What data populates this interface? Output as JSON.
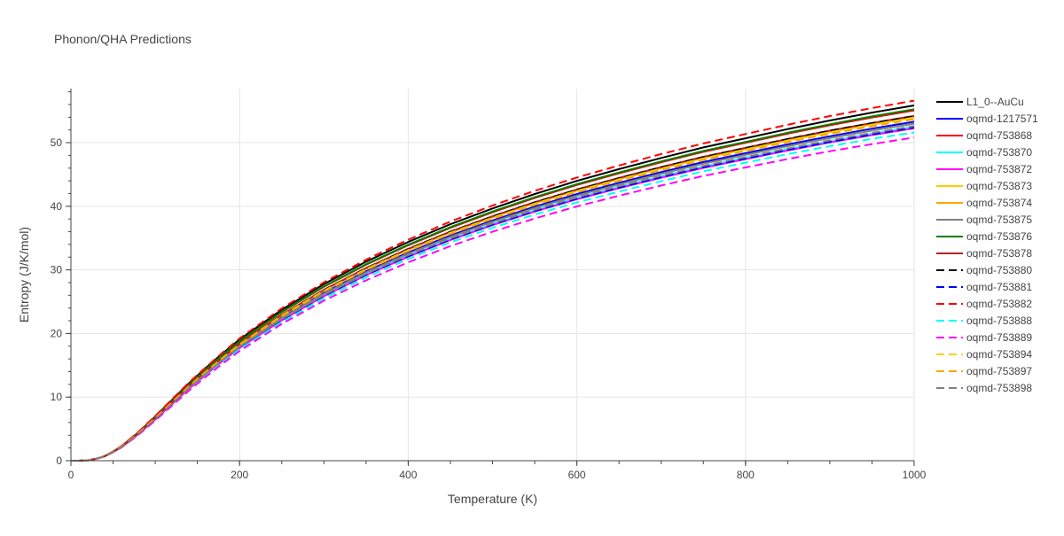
{
  "chart_data": {
    "type": "line",
    "title": "Phonon/QHA Predictions",
    "xlabel": "Temperature (K)",
    "ylabel": "Entropy (J/K/mol)",
    "xlim": [
      0,
      1000
    ],
    "ylim": [
      0,
      58.5
    ],
    "x_ticks": [
      0,
      200,
      400,
      600,
      800,
      1000
    ],
    "y_ticks": [
      0,
      10,
      20,
      30,
      40,
      50
    ],
    "grid": true,
    "legend_position": "right",
    "x": [
      0,
      10,
      20,
      30,
      40,
      50,
      60,
      80,
      100,
      120,
      140,
      160,
      180,
      200,
      250,
      300,
      350,
      400,
      450,
      500,
      550,
      600,
      650,
      700,
      750,
      800,
      850,
      900,
      950,
      1000
    ],
    "reference_curve": [
      0,
      0,
      0.05,
      0.3,
      0.7,
      1.4,
      2.2,
      4.3,
      6.7,
      9.2,
      11.7,
      14.0,
      16.2,
      18.3,
      22.8,
      26.7,
      30.1,
      33.1,
      35.8,
      38.2,
      40.4,
      42.4,
      44.2,
      45.9,
      47.5,
      48.9,
      50.3,
      51.6,
      52.8,
      53.9
    ],
    "series": [
      {
        "name": "L1_0--AuCu",
        "color": "#000000",
        "dash": "solid",
        "values": [
          0,
          0,
          0.05,
          0.31,
          0.71,
          1.43,
          2.27,
          4.46,
          6.95,
          9.56,
          12.18,
          14.58,
          16.88,
          19.06,
          23.73,
          27.77,
          31.29,
          34.39,
          37.18,
          39.65,
          41.92,
          43.98,
          45.84,
          47.6,
          49.25,
          50.69,
          52.14,
          53.48,
          54.72,
          55.85
        ]
      },
      {
        "name": "oqmd-1217571",
        "color": "#0000ff",
        "dash": "solid",
        "values": [
          0,
          0,
          0.05,
          0.3,
          0.69,
          1.39,
          2.18,
          4.26,
          6.63,
          9.09,
          11.57,
          13.84,
          16.02,
          18.09,
          22.55,
          26.4,
          29.77,
          32.74,
          35.4,
          37.77,
          39.95,
          41.92,
          43.7,
          45.38,
          46.96,
          48.35,
          49.73,
          51.01,
          52.2,
          53.29
        ]
      },
      {
        "name": "oqmd-753868",
        "color": "#ff0000",
        "dash": "solid",
        "values": [
          0,
          0,
          0.05,
          0.31,
          0.71,
          1.43,
          2.25,
          4.41,
          6.87,
          9.43,
          11.99,
          14.35,
          16.6,
          18.74,
          23.35,
          27.33,
          30.8,
          33.86,
          36.61,
          39.06,
          41.31,
          43.35,
          45.19,
          46.92,
          48.55,
          49.98,
          51.41,
          52.74,
          53.96,
          55.08
        ]
      },
      {
        "name": "oqmd-753870",
        "color": "#00ffff",
        "dash": "solid",
        "values": [
          0,
          0,
          0.05,
          0.3,
          0.68,
          1.37,
          2.15,
          4.19,
          6.52,
          8.94,
          11.38,
          13.62,
          15.76,
          17.81,
          22.2,
          25.99,
          29.31,
          32.24,
          34.87,
          37.22,
          39.37,
          41.31,
          43.06,
          44.71,
          46.27,
          47.64,
          49.0,
          50.26,
          51.43,
          52.51
        ]
      },
      {
        "name": "oqmd-753872",
        "color": "#ff00ff",
        "dash": "solid",
        "values": [
          0,
          0,
          0.05,
          0.29,
          0.68,
          1.36,
          2.13,
          4.17,
          6.48,
          8.89,
          11.31,
          13.54,
          15.68,
          17.71,
          22.08,
          25.86,
          29.16,
          32.07,
          34.69,
          37.03,
          39.17,
          41.1,
          42.84,
          44.49,
          46.04,
          47.41,
          48.77,
          50.03,
          51.19,
          52.26
        ]
      },
      {
        "name": "oqmd-753873",
        "color": "#ffcc00",
        "dash": "solid",
        "values": [
          0,
          0,
          0.05,
          0.3,
          0.7,
          1.41,
          2.21,
          4.32,
          6.72,
          9.21,
          11.72,
          14.03,
          16.23,
          18.32,
          22.84,
          26.73,
          30.14,
          33.14,
          35.84,
          38.24,
          40.44,
          42.44,
          44.24,
          45.94,
          47.54,
          48.95,
          50.35,
          51.65,
          52.85,
          53.96
        ]
      },
      {
        "name": "oqmd-753874",
        "color": "#ffa500",
        "dash": "solid",
        "values": [
          0,
          0,
          0.05,
          0.3,
          0.7,
          1.41,
          2.22,
          4.33,
          6.74,
          9.24,
          11.76,
          14.08,
          16.29,
          18.39,
          22.92,
          26.83,
          30.25,
          33.27,
          35.98,
          38.39,
          40.6,
          42.6,
          44.41,
          46.12,
          47.72,
          49.14,
          50.54,
          51.85,
          53.05,
          54.16
        ]
      },
      {
        "name": "oqmd-753875",
        "color": "#808080",
        "dash": "solid",
        "values": [
          0,
          0,
          0.05,
          0.3,
          0.69,
          1.38,
          2.17,
          4.24,
          6.59,
          9.04,
          11.5,
          13.76,
          15.93,
          17.99,
          22.42,
          26.24,
          29.59,
          32.55,
          35.19,
          37.56,
          39.72,
          41.68,
          43.45,
          45.12,
          46.69,
          48.07,
          49.44,
          50.72,
          51.9,
          52.99
        ]
      },
      {
        "name": "oqmd-753876",
        "color": "#008000",
        "dash": "solid",
        "values": [
          0,
          0,
          0.05,
          0.31,
          0.71,
          1.43,
          2.26,
          4.42,
          6.89,
          9.45,
          12.02,
          14.39,
          16.65,
          18.79,
          23.42,
          27.41,
          30.89,
          33.96,
          36.71,
          39.18,
          41.43,
          43.47,
          45.31,
          47.05,
          48.69,
          50.12,
          51.56,
          52.89,
          54.12,
          55.25
        ]
      },
      {
        "name": "oqmd-753878",
        "color": "#b22222",
        "dash": "solid",
        "values": [
          0,
          0,
          0.05,
          0.3,
          0.7,
          1.41,
          2.22,
          4.34,
          6.75,
          9.25,
          11.77,
          14.09,
          16.3,
          18.41,
          22.94,
          26.86,
          30.28,
          33.3,
          36.01,
          38.43,
          40.64,
          42.64,
          44.45,
          46.16,
          47.77,
          49.18,
          50.59,
          51.9,
          53.1,
          54.21
        ]
      },
      {
        "name": "oqmd-753880",
        "color": "#000000",
        "dash": "dash",
        "values": [
          0,
          0,
          0.05,
          0.3,
          0.7,
          1.41,
          2.22,
          4.33,
          6.74,
          9.24,
          11.76,
          14.08,
          16.29,
          18.39,
          22.92,
          26.83,
          30.25,
          33.27,
          35.98,
          38.39,
          40.6,
          42.6,
          44.41,
          46.12,
          47.72,
          49.14,
          50.54,
          51.85,
          53.05,
          54.16
        ]
      },
      {
        "name": "oqmd-753881",
        "color": "#0000ff",
        "dash": "dash",
        "values": [
          0,
          0,
          0.05,
          0.29,
          0.68,
          1.36,
          2.14,
          4.18,
          6.5,
          8.91,
          11.35,
          13.58,
          15.72,
          17.75,
          22.13,
          25.91,
          29.22,
          32.14,
          34.76,
          37.1,
          39.24,
          41.18,
          42.93,
          44.57,
          46.13,
          47.5,
          48.86,
          50.12,
          51.29,
          52.37
        ]
      },
      {
        "name": "oqmd-753882",
        "color": "#ff0000",
        "dash": "dash",
        "values": [
          0,
          0,
          0.05,
          0.32,
          0.73,
          1.47,
          2.31,
          4.52,
          7.04,
          9.66,
          12.29,
          14.7,
          17.01,
          19.22,
          23.94,
          28.04,
          31.61,
          34.75,
          37.59,
          40.11,
          42.42,
          44.52,
          46.41,
          48.2,
          49.88,
          51.35,
          52.82,
          54.18,
          55.44,
          56.6
        ]
      },
      {
        "name": "oqmd-753888",
        "color": "#00ffff",
        "dash": "dash",
        "values": [
          0,
          0,
          0.05,
          0.29,
          0.67,
          1.34,
          2.11,
          4.13,
          6.43,
          8.8,
          11.2,
          13.4,
          15.52,
          17.5,
          21.8,
          25.5,
          28.8,
          31.7,
          34.3,
          36.6,
          38.7,
          40.6,
          42.3,
          43.95,
          45.5,
          46.85,
          48.2,
          49.45,
          50.6,
          51.6
        ]
      },
      {
        "name": "oqmd-753889",
        "color": "#ff00ff",
        "dash": "dash",
        "values": [
          0,
          0,
          0.04,
          0.28,
          0.66,
          1.32,
          2.08,
          4.07,
          6.33,
          8.67,
          11.02,
          13.2,
          15.28,
          17.25,
          21.5,
          25.15,
          28.36,
          31.19,
          33.74,
          36.0,
          38.08,
          39.97,
          41.66,
          43.26,
          44.77,
          46.1,
          47.42,
          48.65,
          49.77,
          50.81
        ]
      },
      {
        "name": "oqmd-753894",
        "color": "#ffcc00",
        "dash": "dash",
        "values": [
          0,
          0,
          0.05,
          0.3,
          0.7,
          1.41,
          2.21,
          4.32,
          6.72,
          9.21,
          11.72,
          14.03,
          16.23,
          18.32,
          22.84,
          26.73,
          30.14,
          33.14,
          35.84,
          38.24,
          40.44,
          42.44,
          44.24,
          45.94,
          47.54,
          48.95,
          50.35,
          51.65,
          52.85,
          53.96
        ]
      },
      {
        "name": "oqmd-753897",
        "color": "#ffa500",
        "dash": "dash",
        "values": [
          0,
          0,
          0.05,
          0.3,
          0.7,
          1.4,
          2.2,
          4.29,
          6.68,
          9.16,
          11.66,
          13.95,
          16.15,
          18.23,
          22.71,
          26.59,
          29.98,
          32.97,
          35.65,
          38.04,
          40.23,
          42.22,
          44.01,
          45.7,
          47.29,
          48.69,
          50.09,
          51.38,
          52.58,
          53.68
        ]
      },
      {
        "name": "oqmd-753898",
        "color": "#808080",
        "dash": "dash",
        "values": [
          0,
          0,
          0.05,
          0.3,
          0.68,
          1.37,
          2.15,
          4.2,
          6.54,
          8.97,
          11.41,
          13.66,
          15.81,
          17.86,
          22.25,
          26.05,
          29.38,
          32.31,
          34.94,
          37.29,
          39.45,
          41.39,
          43.15,
          44.8,
          46.36,
          47.73,
          49.09,
          50.36,
          51.53,
          52.61
        ]
      }
    ]
  }
}
